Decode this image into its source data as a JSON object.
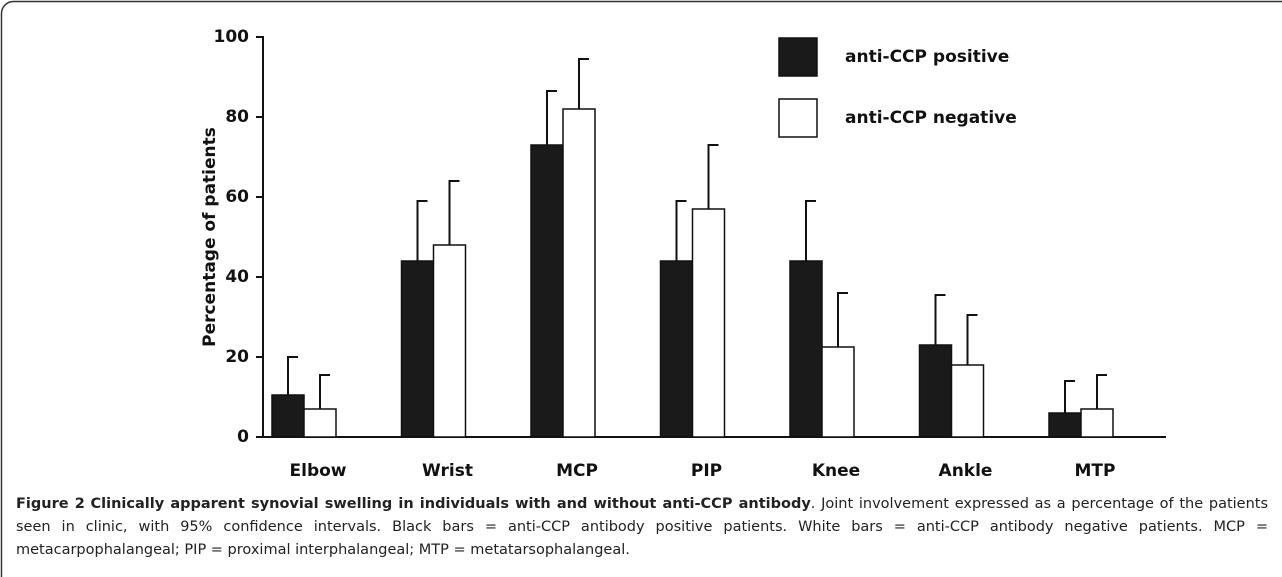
{
  "chart_data": {
    "type": "bar",
    "y_label": "Percentage of patients",
    "categories": [
      "Elbow",
      "Wrist",
      "MCP",
      "PIP",
      "Knee",
      "Ankle",
      "MTP"
    ],
    "series": [
      {
        "name": "anti-CCP positive",
        "color": "#1a1a1a",
        "values": [
          10.5,
          44,
          73,
          44,
          44,
          23,
          6
        ],
        "errors": [
          9.5,
          15,
          13.5,
          15,
          15,
          12.5,
          8
        ]
      },
      {
        "name": "anti-CCP negative",
        "color": "#ffffff",
        "values": [
          7,
          48,
          82,
          57,
          22.5,
          18,
          7
        ],
        "errors": [
          8.5,
          16,
          12.5,
          16,
          13.5,
          12.5,
          8.5
        ]
      }
    ],
    "ylim": [
      0,
      100
    ],
    "yticks": [
      0,
      20,
      40,
      60,
      80,
      100
    ],
    "grid": false,
    "legend": "top-right"
  },
  "caption": {
    "label": "Figure 2",
    "title": "Clinically apparent synovial swelling in individuals with and without anti-CCP antibody",
    "text": ". Joint involvement expressed as a percentage of the patients seen in clinic, with 95% confidence intervals. Black bars = anti-CCP antibody positive patients. White bars = anti-CCP antibody negative patients. MCP = metacarpophalangeal; PIP = proximal interphalangeal; MTP = metatarsophalangeal."
  }
}
